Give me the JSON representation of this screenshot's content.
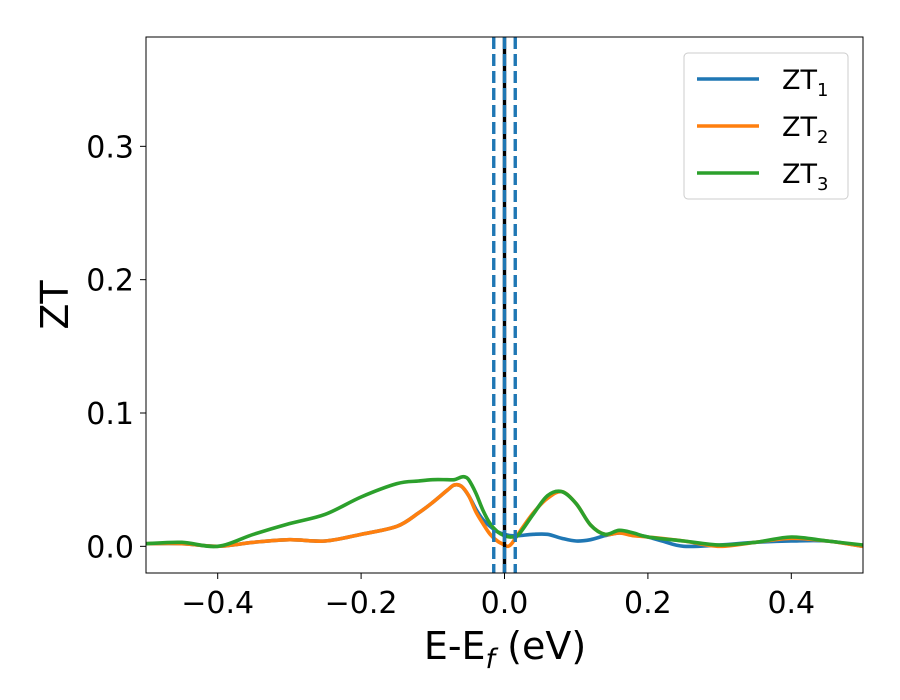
{
  "chart_data": {
    "type": "line",
    "title": "",
    "xlabel": "E-E",
    "xlabel_sub": "f",
    "xlabel_unit": " (eV)",
    "ylabel": "ZT",
    "xlim": [
      -0.5,
      0.5
    ],
    "ylim": [
      -0.02,
      0.382
    ],
    "xticks": [
      -0.4,
      -0.2,
      0.0,
      0.2,
      0.4
    ],
    "xtick_labels": [
      "−0.4",
      "−0.2",
      "0.0",
      "0.2",
      "0.4"
    ],
    "yticks": [
      0.0,
      0.1,
      0.2,
      0.3
    ],
    "ytick_labels": [
      "0.0",
      "0.1",
      "0.2",
      "0.3"
    ],
    "grid": false,
    "legend_position": "top-right",
    "vlines": [
      {
        "x": 0.0,
        "color": "#000000",
        "style": "solid"
      },
      {
        "x": 0.0,
        "color": "#1f77b4",
        "style": "dashed"
      },
      {
        "x": -0.015,
        "color": "#1f77b4",
        "style": "dashed"
      },
      {
        "x": 0.015,
        "color": "#1f77b4",
        "style": "dashed"
      }
    ],
    "series": [
      {
        "name": "ZT",
        "name_sub": "1",
        "color": "#1f77b4",
        "x": [
          -0.5,
          -0.45,
          -0.4,
          -0.35,
          -0.3,
          -0.25,
          -0.2,
          -0.15,
          -0.12,
          -0.1,
          -0.08,
          -0.07,
          -0.06,
          -0.05,
          -0.04,
          -0.03,
          -0.02,
          -0.01,
          0.0,
          0.01,
          0.02,
          0.04,
          0.06,
          0.08,
          0.1,
          0.12,
          0.14,
          0.16,
          0.18,
          0.2,
          0.22,
          0.25,
          0.3,
          0.35,
          0.4,
          0.45,
          0.5
        ],
        "y": [
          0.002,
          0.002,
          0.0,
          0.003,
          0.005,
          0.004,
          0.009,
          0.015,
          0.025,
          0.033,
          0.042,
          0.046,
          0.045,
          0.038,
          0.028,
          0.02,
          0.015,
          0.011,
          0.009,
          0.008,
          0.008,
          0.009,
          0.009,
          0.006,
          0.004,
          0.005,
          0.008,
          0.01,
          0.009,
          0.007,
          0.004,
          0.0,
          0.001,
          0.003,
          0.004,
          0.004,
          0.0
        ]
      },
      {
        "name": "ZT",
        "name_sub": "2",
        "color": "#ff7f0e",
        "x": [
          -0.5,
          -0.45,
          -0.4,
          -0.35,
          -0.3,
          -0.25,
          -0.2,
          -0.15,
          -0.12,
          -0.1,
          -0.08,
          -0.07,
          -0.06,
          -0.05,
          -0.04,
          -0.03,
          -0.02,
          -0.01,
          0.0,
          0.005,
          0.01,
          0.02,
          0.04,
          0.06,
          0.08,
          0.1,
          0.12,
          0.14,
          0.16,
          0.18,
          0.2,
          0.25,
          0.3,
          0.35,
          0.4,
          0.45,
          0.5
        ],
        "y": [
          0.002,
          0.002,
          0.0,
          0.003,
          0.005,
          0.004,
          0.009,
          0.015,
          0.025,
          0.033,
          0.042,
          0.046,
          0.045,
          0.038,
          0.026,
          0.017,
          0.009,
          0.004,
          0.001,
          0.0,
          0.002,
          0.01,
          0.025,
          0.036,
          0.041,
          0.032,
          0.016,
          0.009,
          0.01,
          0.008,
          0.007,
          0.004,
          0.0,
          0.003,
          0.006,
          0.004,
          0.0
        ]
      },
      {
        "name": "ZT",
        "name_sub": "3",
        "color": "#2ca02c",
        "x": [
          -0.5,
          -0.45,
          -0.4,
          -0.35,
          -0.3,
          -0.25,
          -0.2,
          -0.15,
          -0.12,
          -0.1,
          -0.08,
          -0.07,
          -0.06,
          -0.055,
          -0.05,
          -0.04,
          -0.03,
          -0.02,
          -0.01,
          0.0,
          0.01,
          0.02,
          0.04,
          0.06,
          0.08,
          0.1,
          0.12,
          0.14,
          0.16,
          0.18,
          0.2,
          0.25,
          0.3,
          0.35,
          0.4,
          0.45,
          0.5
        ],
        "y": [
          0.002,
          0.003,
          0.0,
          0.009,
          0.017,
          0.024,
          0.037,
          0.047,
          0.049,
          0.05,
          0.05,
          0.05,
          0.052,
          0.052,
          0.05,
          0.04,
          0.027,
          0.017,
          0.011,
          0.008,
          0.007,
          0.009,
          0.024,
          0.038,
          0.041,
          0.032,
          0.016,
          0.009,
          0.012,
          0.01,
          0.007,
          0.004,
          0.001,
          0.003,
          0.007,
          0.004,
          0.001
        ]
      }
    ]
  }
}
